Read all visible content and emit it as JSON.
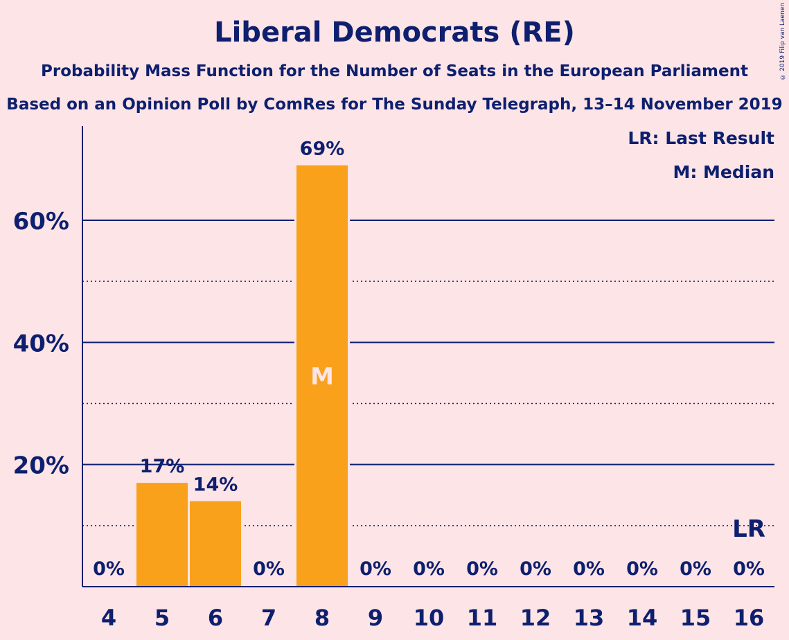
{
  "header": {
    "title": "Liberal Democrats (RE)",
    "subtitle": "Probability Mass Function for the Number of Seats in the European Parliament",
    "subtitle2": "Based on an Opinion Poll by ComRes for The Sunday Telegraph, 13–14 November 2019",
    "copyright": "© 2019 Filip van Laenen"
  },
  "legend": {
    "last_result": "LR: Last Result",
    "median": "M: Median"
  },
  "colors": {
    "background": "#fde4e7",
    "bar": "#f9a11b",
    "text": "#0d1f6e"
  },
  "chart_data": {
    "type": "bar",
    "categories": [
      "4",
      "5",
      "6",
      "7",
      "8",
      "9",
      "10",
      "11",
      "12",
      "13",
      "14",
      "15",
      "16"
    ],
    "values": [
      0,
      17,
      14,
      0,
      69,
      0,
      0,
      0,
      0,
      0,
      0,
      0,
      0
    ],
    "value_labels": [
      "0%",
      "17%",
      "14%",
      "0%",
      "69%",
      "0%",
      "0%",
      "0%",
      "0%",
      "0%",
      "0%",
      "0%",
      "0%"
    ],
    "ylim": [
      0,
      75
    ],
    "yticks": [
      20,
      40,
      60
    ],
    "ytick_labels": [
      "20%",
      "40%",
      "60%"
    ],
    "minor_gridlines": [
      10,
      30,
      50
    ],
    "median_category": "8",
    "median_marker": "M",
    "last_result_category": "16",
    "last_result_marker": "LR",
    "legend_position": "top-right",
    "grid": true
  }
}
